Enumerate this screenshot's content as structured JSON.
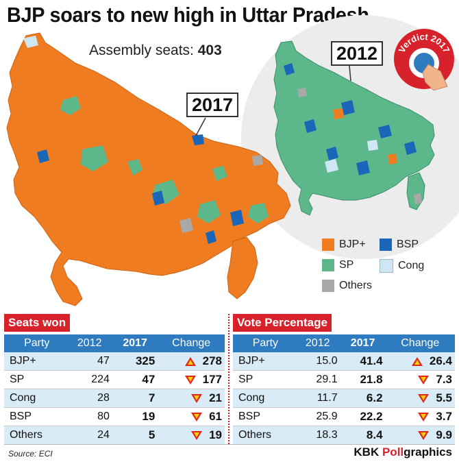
{
  "title": "BJP soars to new high in Uttar Pradesh",
  "subtitle": {
    "label": "Assembly seats:",
    "value": "403"
  },
  "map_tags": {
    "recent": "2017",
    "previous": "2012"
  },
  "badge": {
    "text": "Verdict 2017"
  },
  "colors": {
    "bjp": "#f07c21",
    "sp": "#5cb88b",
    "bsp": "#1a66b8",
    "cong": "#cfe6f5",
    "others": "#a8a8a8",
    "accent": "#d7222b",
    "header": "#2f7bbf"
  },
  "legend": [
    {
      "label": "BJP+",
      "color": "#f07c21"
    },
    {
      "label": "BSP",
      "color": "#1a66b8"
    },
    {
      "label": "SP",
      "color": "#5cb88b"
    },
    {
      "label": "Cong",
      "color": "#cfe6f5"
    },
    {
      "label": "Others",
      "color": "#a8a8a8"
    }
  ],
  "seats_table": {
    "title": "Seats won",
    "headers": [
      "Party",
      "2012",
      "2017",
      "Change"
    ],
    "rows": [
      {
        "party": "BJP+",
        "y2012": "47",
        "y2017": "325",
        "dir": "up",
        "change": "278"
      },
      {
        "party": "SP",
        "y2012": "224",
        "y2017": "47",
        "dir": "down",
        "change": "177"
      },
      {
        "party": "Cong",
        "y2012": "28",
        "y2017": "7",
        "dir": "down",
        "change": "21"
      },
      {
        "party": "BSP",
        "y2012": "80",
        "y2017": "19",
        "dir": "down",
        "change": "61"
      },
      {
        "party": "Others",
        "y2012": "24",
        "y2017": "5",
        "dir": "down",
        "change": "19"
      }
    ]
  },
  "vote_table": {
    "title": "Vote Percentage",
    "headers": [
      "Party",
      "2012",
      "2017",
      "Change"
    ],
    "rows": [
      {
        "party": "BJP+",
        "y2012": "15.0",
        "y2017": "41.4",
        "dir": "up",
        "change": "26.4"
      },
      {
        "party": "SP",
        "y2012": "29.1",
        "y2017": "21.8",
        "dir": "down",
        "change": "7.3"
      },
      {
        "party": "Cong",
        "y2012": "11.7",
        "y2017": "6.2",
        "dir": "down",
        "change": "5.5"
      },
      {
        "party": "BSP",
        "y2012": "25.9",
        "y2017": "22.2",
        "dir": "down",
        "change": "3.7"
      },
      {
        "party": "Others",
        "y2012": "18.3",
        "y2017": "8.4",
        "dir": "down",
        "change": "9.9"
      }
    ]
  },
  "source": "Source: ECI",
  "credit": {
    "prefix": "KBK ",
    "highlight": "Poll",
    "suffix": "graphics"
  }
}
